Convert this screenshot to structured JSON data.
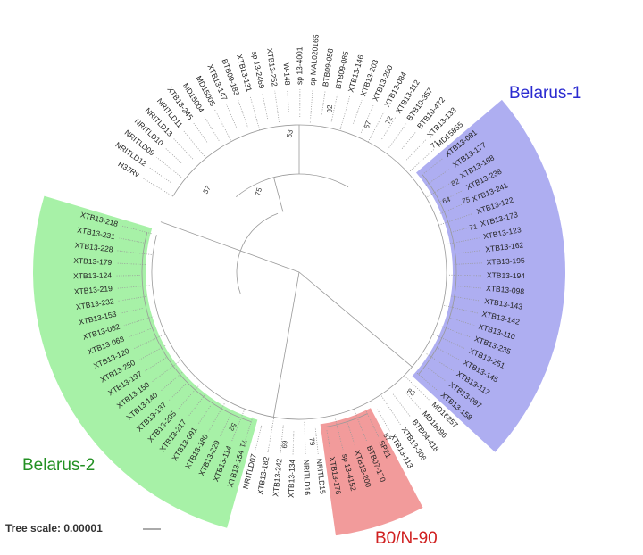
{
  "tree": {
    "segments": [
      {
        "leaves": [
          "H37Rv",
          "NRITLD12",
          "NRITLD09",
          "NRITLD10",
          "NRITLD13",
          "NRITLD11",
          "XTB13-245",
          "MD15004",
          "MD15005",
          "XTB13-147",
          "BTB09-183",
          "XTB13-131",
          "sp 13-2469",
          "XTB13-252",
          "W-148",
          "sp 13-4001",
          "sp MAL020165",
          "BTB09-058",
          "BTB09-085",
          "XTB13-146",
          "XTB13-203",
          "XTB13-290",
          "XTB13-084",
          "XTB13-112",
          "BTB10-357",
          "BTB10-472",
          "XTB13-133",
          "MD15855"
        ]
      },
      {
        "clade": "Belarus-1",
        "color": "#a0a0ee",
        "text_color": "#2a2ad0",
        "leaves": [
          "XTB13-081",
          "XTB13-177",
          "XTB13-168",
          "XTB13-238",
          "XTB13-241",
          "XTB13-122",
          "XTB13-173",
          "XTB13-123",
          "XTB13-162",
          "XTB13-195",
          "XTB13-194",
          "XTB13-098",
          "XTB13-143",
          "XTB13-142",
          "XTB13-110",
          "XTB13-235",
          "XTB13-251",
          "XTB13-145",
          "XTB13-117",
          "XTB13-097",
          "XTB13-158"
        ]
      },
      {
        "leaves": [
          "MD16257",
          "MD18096",
          "BTB04-418",
          "XTB13-306",
          "XTB13-113"
        ]
      },
      {
        "clade": "B0/N-90",
        "color": "#f08a8a",
        "text_color": "#d02020",
        "leaves": [
          "SP21",
          "BTB07-170",
          "XTB13-200",
          "sp 13-4152",
          "XTB13-176"
        ]
      },
      {
        "leaves": [
          "NRITLD15",
          "NRITLD16",
          "XTB13-134",
          "XTB13-242",
          "XTB13-182",
          "NRITLD07"
        ]
      },
      {
        "clade": "Belarus-2",
        "color": "#98ee98",
        "text_color": "#239023",
        "leaves": [
          "XTB13-154",
          "XTB13-114",
          "XTB13-229",
          "XTB13-180",
          "XTB13-091",
          "XTB13-217",
          "XTB13-205",
          "XTB13-137",
          "XTB13-140",
          "XTB13-150",
          "XTB13-197",
          "XTB13-250",
          "XTB13-120",
          "XTB13-068",
          "XTB13-082",
          "XTB13-153",
          "XTB13-232",
          "XTB13-219",
          "XTB13-124",
          "XTB13-179",
          "XTB13-228",
          "XTB13-231",
          "XTB13-218"
        ]
      }
    ],
    "bootstrap_values": [
      "53",
      "57",
      "75",
      "92",
      "67",
      "72",
      "71",
      "82",
      "64",
      "75",
      "71",
      "83",
      "87",
      "79",
      "69",
      "52",
      "71"
    ],
    "scale_label": "Tree scale: 0.00001"
  }
}
